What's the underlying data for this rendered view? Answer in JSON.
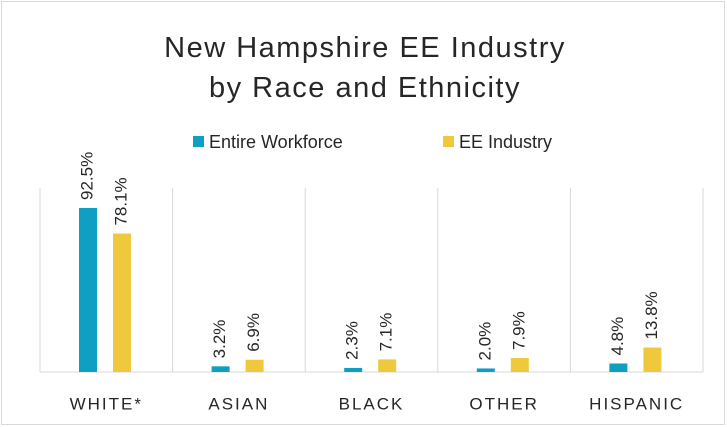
{
  "chart_data": {
    "type": "bar",
    "title": "New Hampshire EE Industry by Race and Ethnicity",
    "categories": [
      "WHITE*",
      "ASIAN",
      "BLACK",
      "OTHER",
      "HISPANIC"
    ],
    "series": [
      {
        "name": "Entire Workforce",
        "color": "#0f9fc3",
        "values": [
          92.5,
          3.2,
          2.3,
          2.0,
          4.8
        ],
        "value_labels": [
          "92.5%",
          "3.2%",
          "2.3%",
          "2.0%",
          "4.8%"
        ]
      },
      {
        "name": "EE Industry",
        "color": "#f0c83c",
        "values": [
          78.1,
          6.9,
          7.1,
          7.9,
          13.8
        ],
        "value_labels": [
          "78.1%",
          "6.9%",
          "7.1%",
          "7.9%",
          "13.8%"
        ]
      }
    ]
  }
}
